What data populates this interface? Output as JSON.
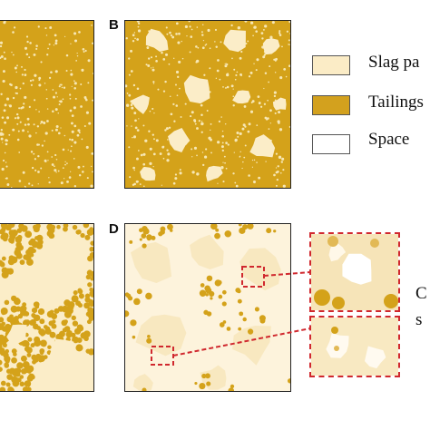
{
  "panels": [
    {
      "label": "",
      "kind": "tailings-dense"
    },
    {
      "label": "B",
      "kind": "tailings-with-slag"
    },
    {
      "label": "",
      "kind": "mixed"
    },
    {
      "label": "D",
      "kind": "slag-sparse"
    }
  ],
  "legend": [
    {
      "label": "Slag pa",
      "color": "#fbecc6",
      "item": "slag-particles"
    },
    {
      "label": "Tailings",
      "color": "#d3a11e",
      "item": "tailings"
    },
    {
      "label": "Space",
      "color": "#ffffff",
      "item": "space"
    }
  ],
  "side_text": [
    "C",
    "s"
  ],
  "colors": {
    "tailings": "#d4a21a",
    "slag": "#fbedc8",
    "space": "#ffffff",
    "callout": "#d0282e"
  }
}
